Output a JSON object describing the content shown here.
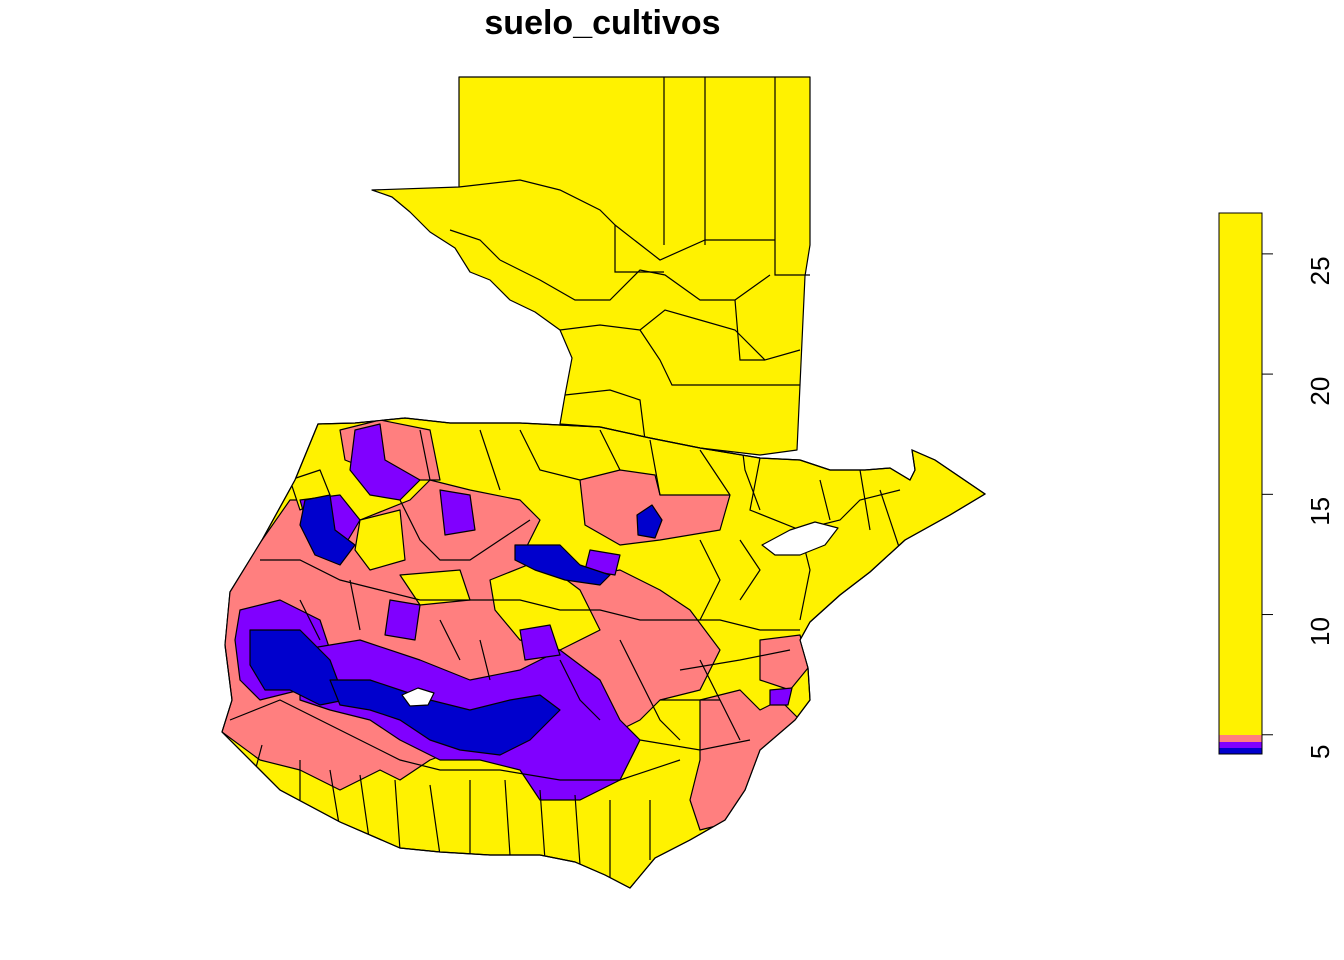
{
  "title": "suelo_cultivos",
  "colors": {
    "high": "#FFF200",
    "mid_high": "#FF7F7F",
    "mid_low": "#8000FF",
    "low": "#0000CD",
    "no_data": "#FFFFFF",
    "outline": "#000000"
  },
  "legend": {
    "type": "continuous-colorbar",
    "position": "right",
    "range": [
      4.2,
      26.7
    ],
    "ticks": [
      5,
      10,
      15,
      20,
      25
    ],
    "stops": [
      {
        "value": 4.2,
        "color": "#0000CD"
      },
      {
        "value": 4.45,
        "color": "#8000FF"
      },
      {
        "value": 4.7,
        "color": "#FF7F7F"
      },
      {
        "value": 5.0,
        "color": "#FFF200"
      },
      {
        "value": 26.7,
        "color": "#FFF200"
      }
    ]
  },
  "map": {
    "region": "Guatemala municipalities (choropleth)",
    "fill_classes": [
      "high",
      "mid_high",
      "mid_low",
      "low",
      "no_data"
    ]
  }
}
